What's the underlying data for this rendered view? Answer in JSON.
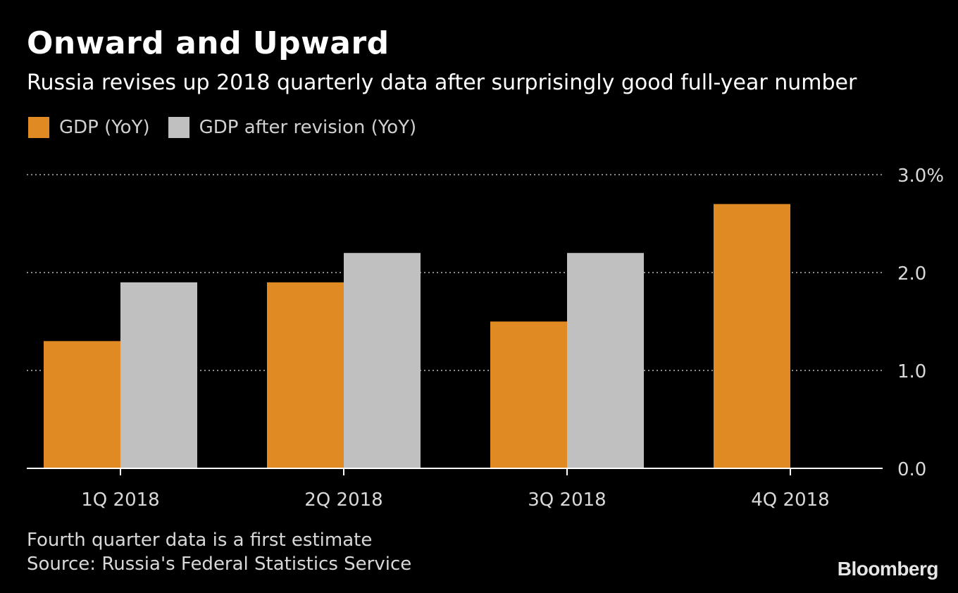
{
  "header": {
    "title": "Onward and Upward",
    "subtitle": "Russia revises up 2018 quarterly data after surprisingly good full-year number"
  },
  "legend": [
    {
      "label": "GDP (YoY)",
      "color": "#e08a24"
    },
    {
      "label": "GDP after revision (YoY)",
      "color": "#c0c0c0"
    }
  ],
  "footer": {
    "note": "Fourth quarter data is a first estimate",
    "source": "Source: Russia's Federal Statistics Service",
    "logo": "Bloomberg"
  },
  "chart_data": {
    "type": "bar",
    "categories": [
      "1Q 2018",
      "2Q 2018",
      "3Q 2018",
      "4Q 2018"
    ],
    "series": [
      {
        "name": "GDP (YoY)",
        "values": [
          1.3,
          1.9,
          1.5,
          2.7
        ],
        "color": "#e08a24"
      },
      {
        "name": "GDP after revision (YoY)",
        "values": [
          1.9,
          2.2,
          2.2,
          null
        ],
        "color": "#c0c0c0"
      }
    ],
    "ylim": [
      0,
      3
    ],
    "yticks": [
      {
        "value": 0,
        "label": "0.0"
      },
      {
        "value": 1,
        "label": "1.0"
      },
      {
        "value": 2,
        "label": "2.0"
      },
      {
        "value": 3,
        "label": "3.0%"
      }
    ],
    "grid": true,
    "axis_position": "right"
  }
}
